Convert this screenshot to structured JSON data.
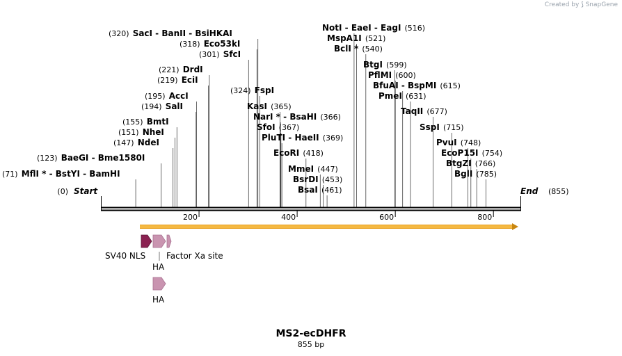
{
  "credit": {
    "prefix": "Created by",
    "brand": "SnapGene"
  },
  "map": {
    "name": "MS2-ecDHFR",
    "length_label": "855 bp",
    "length": 855,
    "start_label": "Start",
    "start_pos": "(0)",
    "end_label": "End",
    "end_pos": "(855)"
  },
  "axis": {
    "ticks": [
      "200",
      "400",
      "600",
      "800"
    ]
  },
  "sites": [
    {
      "parts": [
        "MflI *",
        "BstYI",
        "BamHI"
      ],
      "pos": "(71)",
      "site": 71
    },
    {
      "parts": [
        "BaeGI",
        "Bme1580I"
      ],
      "pos": "(123)",
      "site": 123
    },
    {
      "parts": [
        "NdeI"
      ],
      "pos": "(147)",
      "site": 147
    },
    {
      "parts": [
        "NheI"
      ],
      "pos": "(151)",
      "site": 151
    },
    {
      "parts": [
        "BmtI"
      ],
      "pos": "(155)",
      "site": 155
    },
    {
      "parts": [
        "SalI"
      ],
      "pos": "(194)",
      "site": 194
    },
    {
      "parts": [
        "AccI"
      ],
      "pos": "(195)",
      "site": 195
    },
    {
      "parts": [
        "EciI"
      ],
      "pos": "(219)",
      "site": 219
    },
    {
      "parts": [
        "DrdI"
      ],
      "pos": "(221)",
      "site": 221
    },
    {
      "parts": [
        "SfcI"
      ],
      "pos": "(301)",
      "site": 301
    },
    {
      "parts": [
        "Eco53kI"
      ],
      "pos": "(318)",
      "site": 318
    },
    {
      "parts": [
        "SacI",
        "BanII",
        "BsiHKAI"
      ],
      "pos": "(320)",
      "site": 320
    },
    {
      "parts": [
        "FspI"
      ],
      "pos": "(324)",
      "site": 324
    },
    {
      "parts": [
        "KasI"
      ],
      "pos": "(365)",
      "site": 365
    },
    {
      "parts": [
        "NarI *",
        "BsaHI"
      ],
      "pos": "(366)",
      "site": 366
    },
    {
      "parts": [
        "SfoI"
      ],
      "pos": "(367)",
      "site": 367
    },
    {
      "parts": [
        "PluTI",
        "HaeII"
      ],
      "pos": "(369)",
      "site": 369
    },
    {
      "parts": [
        "EcoRI"
      ],
      "pos": "(418)",
      "site": 418
    },
    {
      "parts": [
        "MmeI"
      ],
      "pos": "(447)",
      "site": 447
    },
    {
      "parts": [
        "BsrDI"
      ],
      "pos": "(453)",
      "site": 453
    },
    {
      "parts": [
        "BsaI"
      ],
      "pos": "(461)",
      "site": 461
    },
    {
      "parts": [
        "NotI",
        "EaeI",
        "EagI"
      ],
      "pos": "(516)",
      "site": 516
    },
    {
      "parts": [
        "MspA1I"
      ],
      "pos": "(521)",
      "site": 521
    },
    {
      "parts": [
        "BclI *"
      ],
      "pos": "(540)",
      "site": 540
    },
    {
      "parts": [
        "BtgI"
      ],
      "pos": "(599)",
      "site": 599
    },
    {
      "parts": [
        "PflMI"
      ],
      "pos": "(600)",
      "site": 600
    },
    {
      "parts": [
        "BfuAI",
        "BspMI"
      ],
      "pos": "(615)",
      "site": 615
    },
    {
      "parts": [
        "PmeI"
      ],
      "pos": "(631)",
      "site": 631
    },
    {
      "parts": [
        "TaqII"
      ],
      "pos": "(677)",
      "site": 677
    },
    {
      "parts": [
        "SspI"
      ],
      "pos": "(715)",
      "site": 715
    },
    {
      "parts": [
        "PvuI"
      ],
      "pos": "(748)",
      "site": 748
    },
    {
      "parts": [
        "EcoP15I"
      ],
      "pos": "(754)",
      "site": 754
    },
    {
      "parts": [
        "BtgZI"
      ],
      "pos": "(766)",
      "site": 766
    },
    {
      "parts": [
        "BglI"
      ],
      "pos": "(785)",
      "site": 785
    }
  ],
  "features": {
    "orf_color": "#f5b942",
    "nls_color": "#8b2252",
    "ha_color": "#c994b0",
    "labels": {
      "nls": "SV40 NLS",
      "ha1": "HA",
      "factor": "Factor Xa site",
      "ha2": "HA"
    }
  }
}
